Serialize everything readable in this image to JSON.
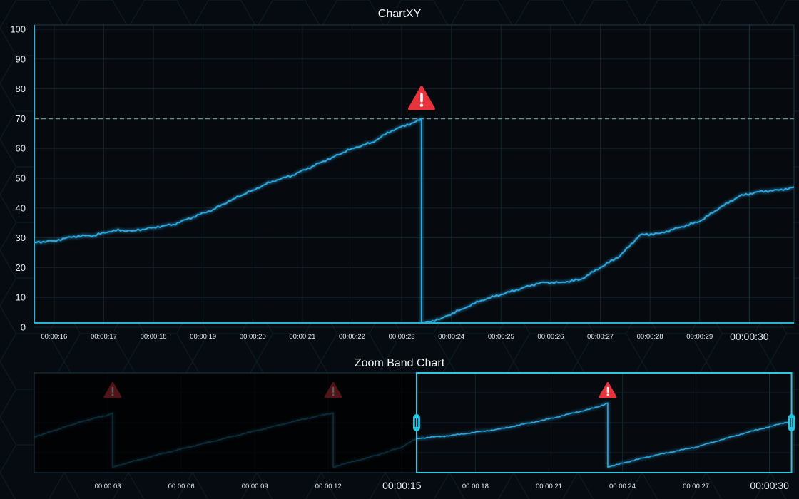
{
  "colors": {
    "background": "#050b10",
    "plot_bg": "#060a0e",
    "frame": "#2ab3d0",
    "series": "#2fa6de",
    "threshold": "#6a8f96",
    "alert": "#e8333d",
    "grid": "#13232a"
  },
  "icons": {
    "alert": "warning-triangle-icon",
    "band_handle": "zoom-band-handle-icon"
  },
  "chart_data": [
    {
      "type": "line",
      "title": "ChartXY",
      "xlabel": "",
      "ylabel": "",
      "x_unit": "elapsed time (hh:mm:ss)",
      "xlim": [
        "00:00:15.6",
        "00:00:30.9"
      ],
      "ylim": [
        0,
        100
      ],
      "y_ticks": [
        "0",
        "10",
        "20",
        "30",
        "40",
        "50",
        "60",
        "70",
        "80",
        "90",
        "100"
      ],
      "x_ticks": [
        "00:00:16",
        "00:00:17",
        "00:00:18",
        "00:00:19",
        "00:00:20",
        "00:00:21",
        "00:00:22",
        "00:00:23",
        "00:00:24",
        "00:00:25",
        "00:00:26",
        "00:00:27",
        "00:00:28",
        "00:00:29"
      ],
      "x_tick_major": "00:00:30",
      "grid": true,
      "legend": "none",
      "threshold": {
        "y": 70,
        "style": "dashed"
      },
      "alerts": [
        {
          "x": "00:00:23.4",
          "y": 70
        }
      ],
      "series": [
        {
          "name": "",
          "points": [
            [
              "00:00:15.6",
              28.5
            ],
            [
              "00:00:16.0",
              29.0
            ],
            [
              "00:00:16.4",
              30.5
            ],
            [
              "00:00:16.8",
              30.8
            ],
            [
              "00:00:17.2",
              32.5
            ],
            [
              "00:00:17.6",
              32.4
            ],
            [
              "00:00:18.0",
              33.5
            ],
            [
              "00:00:18.4",
              34.5
            ],
            [
              "00:00:18.8",
              37.0
            ],
            [
              "00:00:19.2",
              39.5
            ],
            [
              "00:00:19.6",
              43.0
            ],
            [
              "00:00:20.0",
              46.0
            ],
            [
              "00:00:20.4",
              49.0
            ],
            [
              "00:00:20.8",
              51.0
            ],
            [
              "00:00:21.2",
              54.0
            ],
            [
              "00:00:21.6",
              57.0
            ],
            [
              "00:00:22.0",
              60.0
            ],
            [
              "00:00:22.4",
              62.0
            ],
            [
              "00:00:22.8",
              66.0
            ],
            [
              "00:00:23.2",
              68.5
            ],
            [
              "00:00:23.4",
              70.0
            ],
            [
              "00:00:23.4",
              1.0
            ],
            [
              "00:00:23.8",
              3.0
            ],
            [
              "00:00:24.2",
              6.0
            ],
            [
              "00:00:24.6",
              9.0
            ],
            [
              "00:00:25.0",
              11.0
            ],
            [
              "00:00:25.4",
              13.0
            ],
            [
              "00:00:25.8",
              15.0
            ],
            [
              "00:00:26.2",
              15.0
            ],
            [
              "00:00:26.6",
              16.0
            ],
            [
              "00:00:27.0",
              20.0
            ],
            [
              "00:00:27.4",
              24.0
            ],
            [
              "00:00:27.8",
              31.0
            ],
            [
              "00:00:28.2",
              31.5
            ],
            [
              "00:00:28.6",
              33.5
            ],
            [
              "00:00:29.0",
              35.5
            ],
            [
              "00:00:29.4",
              40.0
            ],
            [
              "00:00:29.8",
              44.0
            ],
            [
              "00:00:30.2",
              45.5
            ],
            [
              "00:00:30.6",
              46.0
            ],
            [
              "00:00:30.9",
              47.0
            ]
          ]
        }
      ]
    },
    {
      "type": "line",
      "title": "Zoom Band Chart",
      "xlabel": "",
      "ylabel": "",
      "x_unit": "elapsed time (hh:mm:ss)",
      "xlim": [
        "00:00:00",
        "00:00:31"
      ],
      "x_ticks": [
        "00:00:03",
        "00:00:06",
        "00:00:09",
        "00:00:12",
        "00:00:18",
        "00:00:21",
        "00:00:24",
        "00:00:27"
      ],
      "x_ticks_major": [
        "00:00:15",
        "00:00:30"
      ],
      "selection": {
        "from": "00:00:15.6",
        "to": "00:00:30.9"
      },
      "grid": true,
      "legend": "none",
      "alerts": [
        {
          "x": "00:00:03.2",
          "y": 70
        },
        {
          "x": "00:00:12.2",
          "y": 70
        },
        {
          "x": "00:00:23.4",
          "y": 70
        }
      ],
      "series": [
        {
          "name": "",
          "points": [
            [
              "00:00:00.0",
              30.0
            ],
            [
              "00:00:01.0",
              38.0
            ],
            [
              "00:00:02.0",
              46.0
            ],
            [
              "00:00:03.0",
              52.0
            ],
            [
              "00:00:03.2",
              54.0
            ],
            [
              "00:00:03.2",
              0.0
            ],
            [
              "00:00:05.0",
              12.0
            ],
            [
              "00:00:07.0",
              24.0
            ],
            [
              "00:00:09.0",
              36.0
            ],
            [
              "00:00:11.0",
              48.0
            ],
            [
              "00:00:12.2",
              54.0
            ],
            [
              "00:00:12.2",
              0.0
            ],
            [
              "00:00:14.0",
              12.0
            ],
            [
              "00:00:15.0",
              20.0
            ],
            [
              "00:00:15.6",
              28.5
            ],
            [
              "00:00:17.0",
              31.5
            ],
            [
              "00:00:19.0",
              38.0
            ],
            [
              "00:00:21.0",
              48.0
            ],
            [
              "00:00:23.0",
              60.0
            ],
            [
              "00:00:23.4",
              64.0
            ],
            [
              "00:00:23.4",
              0.0
            ],
            [
              "00:00:25.0",
              10.0
            ],
            [
              "00:00:27.0",
              20.0
            ],
            [
              "00:00:29.0",
              34.0
            ],
            [
              "00:00:30.9",
              46.0
            ]
          ]
        }
      ]
    }
  ]
}
